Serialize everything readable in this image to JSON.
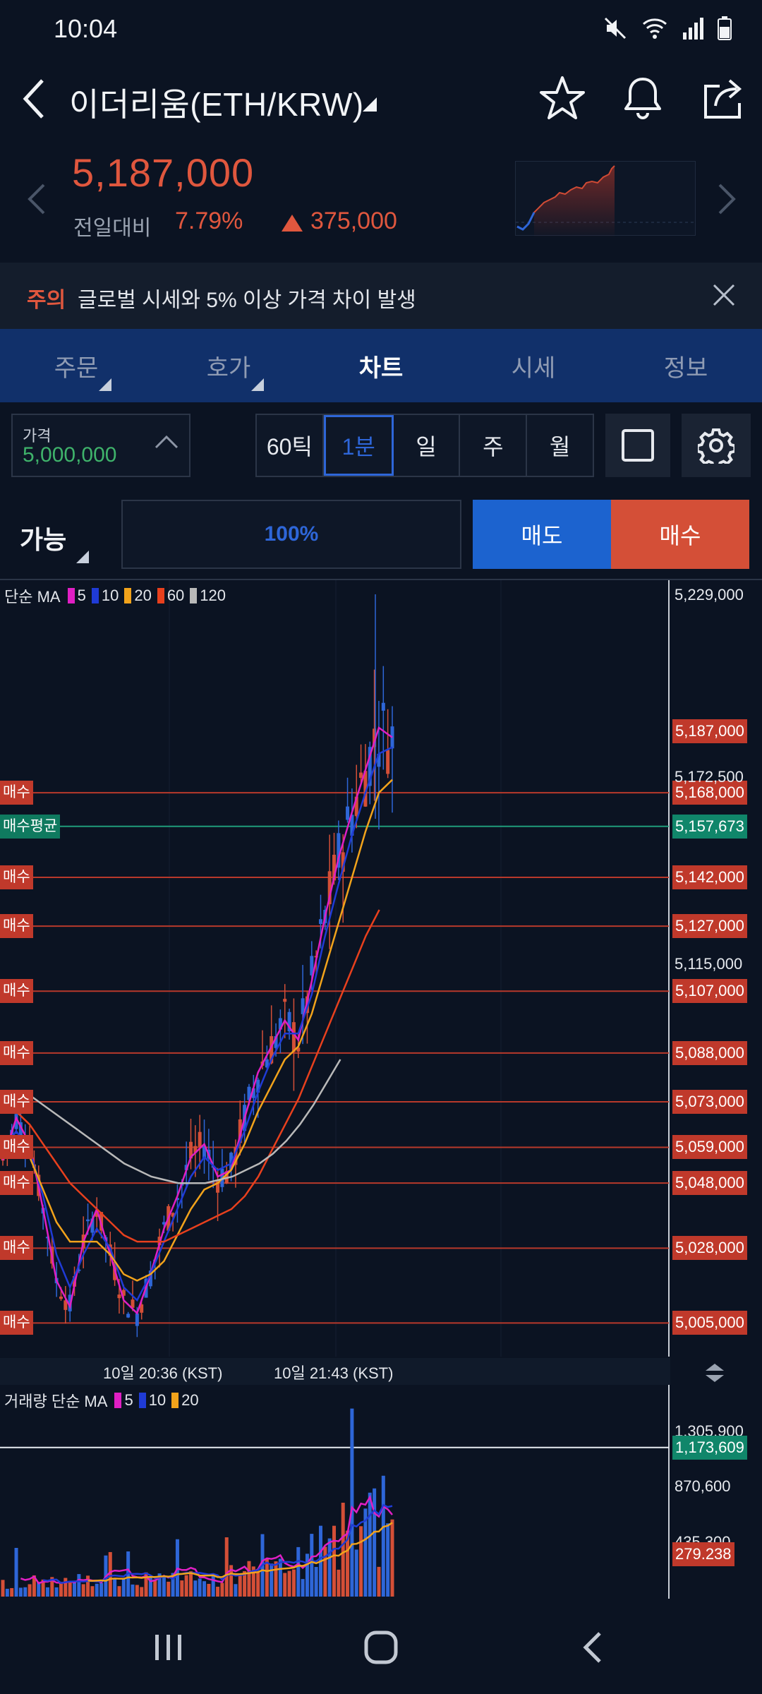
{
  "status": {
    "time": "10:04",
    "icons": [
      "mute-icon",
      "wifi-icon",
      "signal-icon",
      "battery-icon"
    ]
  },
  "header": {
    "title": "이더리움(ETH/KRW)",
    "icons": [
      "back-icon",
      "star-icon",
      "bell-icon",
      "share-icon"
    ]
  },
  "price_panel": {
    "price": "5,187,000",
    "change_label": "전일대비",
    "change_pct": "7.79%",
    "change_amount": "375,000",
    "colors": {
      "up": "#e0573e",
      "down": "#2e66d8"
    }
  },
  "notice": {
    "tag": "주의",
    "text": "글로벌 시세와 5% 이상 가격 차이 발생"
  },
  "tabs": [
    {
      "label": "주문",
      "has_menu": true,
      "active": false
    },
    {
      "label": "호가",
      "has_menu": true,
      "active": false
    },
    {
      "label": "차트",
      "has_menu": false,
      "active": true
    },
    {
      "label": "시세",
      "has_menu": false,
      "active": false
    },
    {
      "label": "정보",
      "has_menu": false,
      "active": false
    }
  ],
  "controls": {
    "price_label": "가격",
    "price_value": "5,000,000",
    "timeframes": [
      "60틱",
      "1분",
      "일",
      "주",
      "월"
    ],
    "active_timeframe": "1분"
  },
  "order": {
    "avail_label": "가능",
    "qty_pct": "100%",
    "sell_label": "매도",
    "buy_label": "매수"
  },
  "chart": {
    "main_legend": {
      "prefix": "단순 MA",
      "items": [
        {
          "label": "5",
          "color": "#e01fc4"
        },
        {
          "label": "10",
          "color": "#1f3bd6"
        },
        {
          "label": "20",
          "color": "#f2a31b"
        },
        {
          "label": "60",
          "color": "#e8401d"
        },
        {
          "label": "120",
          "color": "#b9b9b9"
        }
      ]
    },
    "volume_legend": {
      "prefix": "거래량 단순 MA",
      "items": [
        {
          "label": "5",
          "color": "#e01fc4"
        },
        {
          "label": "10",
          "color": "#1f3bd6"
        },
        {
          "label": "20",
          "color": "#f2a31b"
        }
      ]
    },
    "axis_labels": [
      "5,229,000",
      "5,172,500",
      "5,115,000"
    ],
    "current_price_tag": "5,187,000",
    "avg_price": {
      "label": "매수평균",
      "value": "5,157,673"
    },
    "buy_tag_label": "매수",
    "buy_lines": [
      "5,168,000",
      "5,142,000",
      "5,127,000",
      "5,107,000",
      "5,088,000",
      "5,073,000",
      "5,059,000",
      "5,048,000",
      "5,028,000",
      "5,005,000"
    ],
    "time_labels": [
      "10일 20:36 (KST)",
      "10일 21:43 (KST)"
    ],
    "volume_axis": [
      "1,305,900",
      "870,600",
      "435,300"
    ],
    "volume_current": "1,173,609",
    "volume_last": "279.238"
  },
  "chart_data": {
    "type": "line",
    "title": "",
    "ylim": [
      4999000,
      5229000
    ],
    "ma": [
      {
        "name": "5",
        "color": "#e01fc4",
        "values": [
          5055000,
          5068000,
          5060000,
          5040000,
          5018000,
          5010000,
          5030000,
          5040000,
          5026000,
          5012000,
          5008000,
          5020000,
          5034000,
          5044000,
          5056000,
          5060000,
          5050000,
          5052000,
          5068000,
          5082000,
          5090000,
          5098000,
          5092000,
          5110000,
          5130000,
          5148000,
          5162000,
          5175000,
          5188000,
          5185000
        ]
      },
      {
        "name": "10",
        "color": "#1f3bd6",
        "values": [
          5058000,
          5064000,
          5058000,
          5044000,
          5026000,
          5016000,
          5026000,
          5034000,
          5028000,
          5016000,
          5012000,
          5020000,
          5030000,
          5040000,
          5050000,
          5056000,
          5052000,
          5054000,
          5064000,
          5076000,
          5086000,
          5094000,
          5094000,
          5106000,
          5124000,
          5140000,
          5155000,
          5168000,
          5180000,
          5182000
        ]
      },
      {
        "name": "20",
        "color": "#f2a31b",
        "values": [
          5062000,
          5062000,
          5056000,
          5046000,
          5036000,
          5030000,
          5030000,
          5030000,
          5026000,
          5020000,
          5018000,
          5020000,
          5024000,
          5032000,
          5040000,
          5046000,
          5048000,
          5052000,
          5060000,
          5070000,
          5078000,
          5086000,
          5090000,
          5100000,
          5114000,
          5128000,
          5142000,
          5156000,
          5168000,
          5172000
        ]
      },
      {
        "name": "60",
        "color": "#e8401d",
        "values": [
          5072000,
          5070000,
          5066000,
          5060000,
          5054000,
          5048000,
          5044000,
          5040000,
          5036000,
          5032000,
          5030000,
          5030000,
          5030000,
          5032000,
          5034000,
          5036000,
          5038000,
          5040000,
          5044000,
          5050000,
          5058000,
          5066000,
          5074000,
          5084000,
          5094000,
          5104000,
          5114000,
          5124000,
          5132000
        ]
      },
      {
        "name": "120",
        "color": "#b9b9b9",
        "values": [
          5075000,
          5076000,
          5075000,
          5072000,
          5069000,
          5066000,
          5063000,
          5060000,
          5057000,
          5054000,
          5052000,
          5050000,
          5049000,
          5048000,
          5048000,
          5048000,
          5049000,
          5050000,
          5052000,
          5054000,
          5057000,
          5061000,
          5066000,
          5072000,
          5079000,
          5086000
        ]
      }
    ],
    "price_tags": [
      5187000,
      5168000,
      5157673,
      5142000,
      5127000,
      5107000,
      5088000,
      5073000,
      5059000,
      5048000,
      5028000,
      5005000
    ]
  }
}
